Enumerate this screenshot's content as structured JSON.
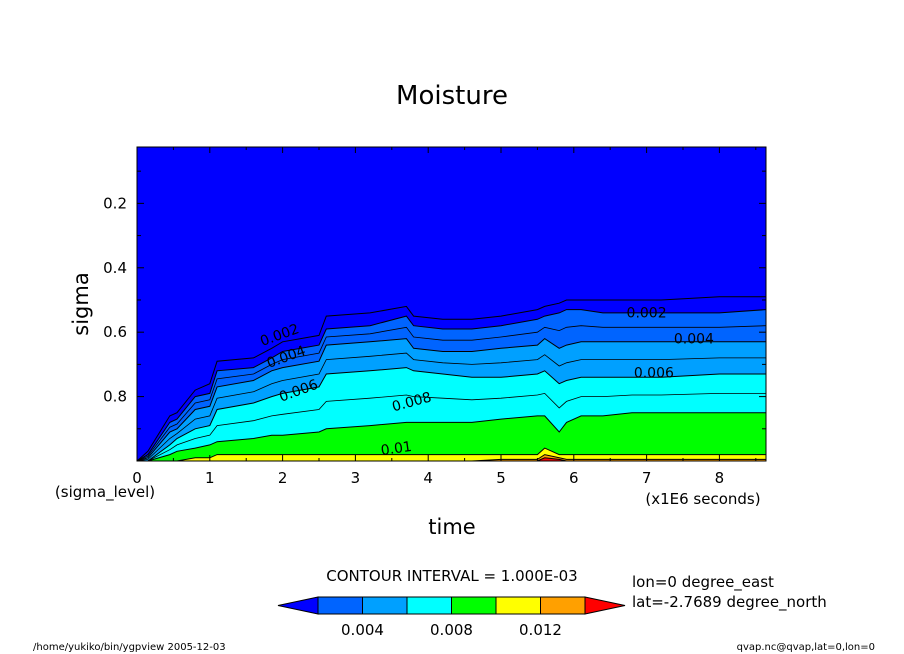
{
  "chart_data": {
    "type": "contour",
    "title": "Moisture",
    "xlabel": "time",
    "ylabel": "sigma",
    "x_unit_label": "(x1E6 seconds)",
    "y_axis_caption": "(sigma_level)",
    "xlim": [
      0,
      8.64
    ],
    "ylim_reversed": [
      0.025,
      1.0
    ],
    "x_ticks": [
      "0",
      "1",
      "2",
      "3",
      "4",
      "5",
      "6",
      "7",
      "8"
    ],
    "y_ticks": [
      "0.2",
      "0.4",
      "0.6",
      "0.8"
    ],
    "y_tick_values": [
      0.2,
      0.4,
      0.6,
      0.8
    ],
    "contour_interval_text": "CONTOUR INTERVAL = 1.000E-03",
    "contour_line_labels": [
      "0.002",
      "0.004",
      "0.006",
      "0.008",
      "0.01"
    ],
    "colorbar": {
      "levels": [
        0,
        0.002,
        0.004,
        0.006,
        0.008,
        0.01,
        0.012,
        0.014
      ],
      "tick_labels": [
        "0.004",
        "0.008",
        "0.012"
      ],
      "tick_values": [
        0.004,
        0.008,
        0.012
      ],
      "colors": [
        "#0000ff",
        "#0064ff",
        "#00a0ff",
        "#00ffff",
        "#00ff00",
        "#ffff00",
        "#ffa000",
        "#ff0000"
      ]
    },
    "location": [
      "lon=0 degree_east",
      "lat=-2.7689 degree_north"
    ],
    "footer_left": "/home/yukiko/bin/ygpview  2005-12-03",
    "footer_right": "qvap.nc@qvap,lat=0,lon=0",
    "boundaries": {
      "t": [
        0.0,
        0.15,
        0.45,
        0.55,
        0.8,
        1.0,
        1.1,
        1.6,
        1.85,
        2.0,
        2.5,
        2.6,
        3.2,
        3.7,
        3.8,
        4.2,
        4.6,
        5.0,
        5.5,
        5.6,
        5.8,
        5.9,
        6.1,
        6.4,
        6.8,
        7.2,
        8.0,
        8.64
      ],
      "b0": [
        1.0,
        0.98,
        0.88,
        0.87,
        0.8,
        0.79,
        0.72,
        0.71,
        0.68,
        0.66,
        0.64,
        0.59,
        0.58,
        0.55,
        0.58,
        0.59,
        0.59,
        0.58,
        0.56,
        0.55,
        0.54,
        0.53,
        0.53,
        0.54,
        0.54,
        0.54,
        0.54,
        0.53
      ],
      "b1": [
        1.0,
        0.99,
        0.91,
        0.9,
        0.84,
        0.83,
        0.77,
        0.75,
        0.72,
        0.71,
        0.69,
        0.64,
        0.63,
        0.62,
        0.65,
        0.66,
        0.66,
        0.65,
        0.64,
        0.62,
        0.65,
        0.64,
        0.63,
        0.63,
        0.63,
        0.63,
        0.63,
        0.63
      ],
      "b2": [
        1.0,
        1.0,
        0.95,
        0.93,
        0.9,
        0.89,
        0.84,
        0.82,
        0.8,
        0.79,
        0.77,
        0.73,
        0.72,
        0.71,
        0.72,
        0.73,
        0.74,
        0.74,
        0.73,
        0.72,
        0.76,
        0.75,
        0.74,
        0.74,
        0.74,
        0.74,
        0.73,
        0.73
      ],
      "b3": [
        1.0,
        1.0,
        0.98,
        0.97,
        0.96,
        0.95,
        0.94,
        0.93,
        0.92,
        0.92,
        0.91,
        0.9,
        0.89,
        0.88,
        0.88,
        0.88,
        0.88,
        0.87,
        0.86,
        0.86,
        0.91,
        0.88,
        0.86,
        0.86,
        0.85,
        0.85,
        0.85,
        0.85
      ],
      "b4": [
        1.0,
        1.0,
        1.0,
        1.0,
        0.99,
        0.99,
        0.98,
        0.98,
        0.98,
        0.98,
        0.98,
        0.98,
        0.98,
        0.98,
        0.98,
        0.98,
        0.98,
        0.98,
        0.98,
        0.96,
        0.98,
        0.98,
        0.98,
        0.98,
        0.98,
        0.98,
        0.98,
        0.98
      ],
      "b5": [
        1.0,
        1.0,
        1.0,
        1.0,
        1.0,
        1.0,
        1.0,
        1.0,
        1.0,
        1.0,
        1.0,
        1.0,
        1.0,
        1.0,
        1.0,
        1.0,
        1.0,
        0.995,
        0.995,
        0.98,
        0.99,
        0.995,
        0.995,
        0.995,
        0.995,
        0.995,
        0.995,
        0.995
      ],
      "b6": [
        1.0,
        1.0,
        1.0,
        1.0,
        1.0,
        1.0,
        1.0,
        1.0,
        1.0,
        1.0,
        1.0,
        1.0,
        1.0,
        1.0,
        1.0,
        1.0,
        1.0,
        1.0,
        1.0,
        0.99,
        0.995,
        1.0,
        1.0,
        1.0,
        1.0,
        1.0,
        1.0,
        1.0
      ],
      "line0": [
        1.0,
        0.97,
        0.86,
        0.85,
        0.78,
        0.76,
        0.69,
        0.68,
        0.65,
        0.63,
        0.61,
        0.55,
        0.54,
        0.52,
        0.55,
        0.56,
        0.56,
        0.55,
        0.53,
        0.52,
        0.51,
        0.5,
        0.5,
        0.5,
        0.5,
        0.5,
        0.49,
        0.49
      ]
    }
  }
}
